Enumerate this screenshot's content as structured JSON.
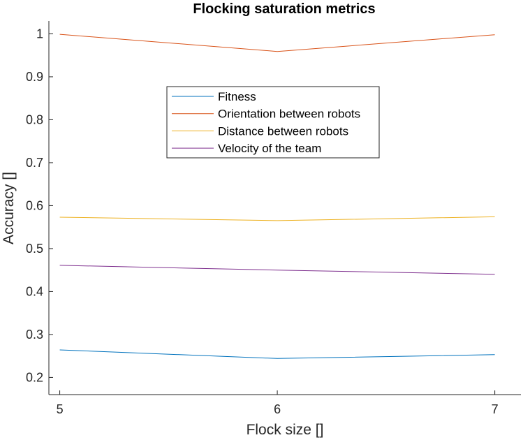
{
  "chart_data": {
    "type": "line",
    "title": "Flocking saturation metrics",
    "xlabel": "Flock size []",
    "ylabel": "Accuracy []",
    "x": [
      5,
      6,
      7
    ],
    "xlim": [
      4.95,
      7.12
    ],
    "ylim": [
      0.16,
      1.03
    ],
    "xticks": [
      "5",
      "6",
      "7"
    ],
    "yticks": [
      "0.2",
      "0.3",
      "0.4",
      "0.5",
      "0.6",
      "0.7",
      "0.8",
      "0.9",
      "1"
    ],
    "grid": false,
    "legend_position": "upper-center",
    "series": [
      {
        "name": "Fitness",
        "color": "#0072BD",
        "values": [
          0.264,
          0.244,
          0.253
        ]
      },
      {
        "name": "Orientation between robots",
        "color": "#D95319",
        "values": [
          0.999,
          0.959,
          0.998
        ]
      },
      {
        "name": "Distance between robots",
        "color": "#EDB120",
        "values": [
          0.573,
          0.565,
          0.574
        ]
      },
      {
        "name": "Velocity of the team",
        "color": "#7E2F8E",
        "values": [
          0.461,
          0.45,
          0.44
        ]
      }
    ]
  }
}
